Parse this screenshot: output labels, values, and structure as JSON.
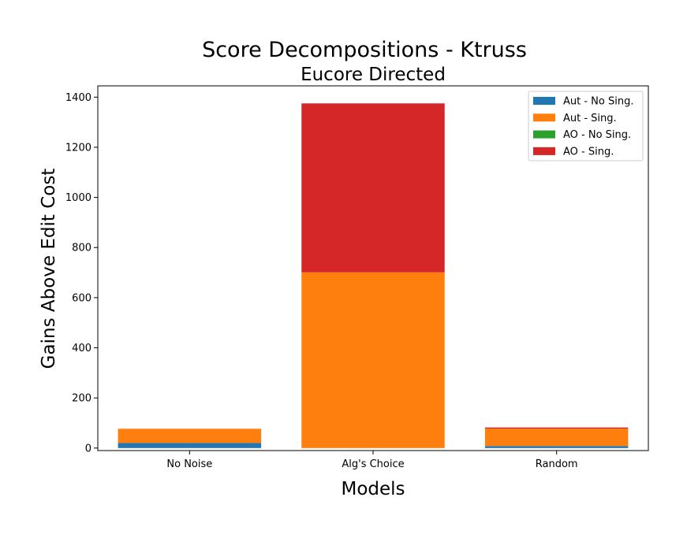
{
  "chart_data": {
    "type": "bar",
    "stacked": true,
    "title": "Score Decompositions - Ktruss",
    "subtitle": "Eucore Directed",
    "xlabel": "Models",
    "ylabel": "Gains Above Edit Cost",
    "categories": [
      "No Noise",
      "Alg's Choice",
      "Random"
    ],
    "ylim": [
      -10,
      1445
    ],
    "yticks": [
      0,
      200,
      400,
      600,
      800,
      1000,
      1200,
      1400
    ],
    "grid": false,
    "legend_position": "upper right",
    "series": [
      {
        "name": "Aut - No Sing.",
        "color": "#1f77b4",
        "values": [
          20,
          0,
          8
        ]
      },
      {
        "name": "Aut - Sing.",
        "color": "#ff7f0e",
        "values": [
          57,
          701,
          70
        ]
      },
      {
        "name": "AO - No Sing.",
        "color": "#2ca02c",
        "values": [
          0,
          0,
          0
        ]
      },
      {
        "name": "AO - Sing.",
        "color": "#d62728",
        "values": [
          0,
          674,
          4
        ]
      }
    ]
  }
}
